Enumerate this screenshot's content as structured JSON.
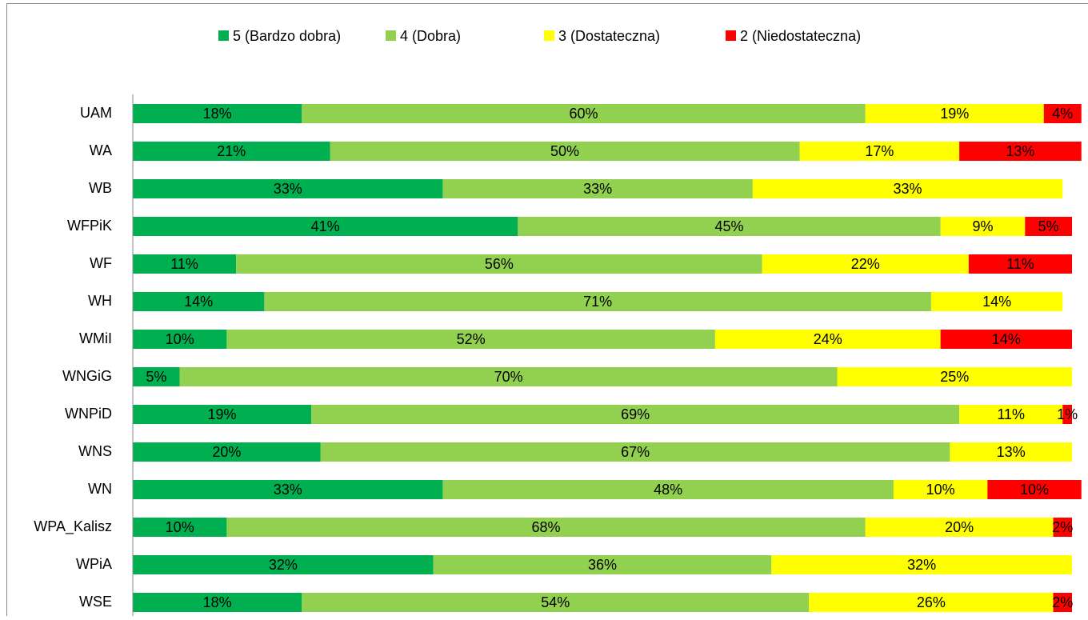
{
  "chart_data": {
    "type": "stacked-bar-horizontal",
    "categories": [
      "UAM",
      "WA",
      "WB",
      "WFPiK",
      "WF",
      "WH",
      "WMiI",
      "WNGiG",
      "WNPiD",
      "WNS",
      "WN",
      "WPA_Kalisz",
      "WPiA",
      "WSE"
    ],
    "xlim": [
      0,
      100
    ],
    "legend": "top",
    "series": [
      {
        "name": "5 (Bardzo dobra)",
        "color": "#00b050",
        "values": [
          18,
          21,
          33,
          41,
          11,
          14,
          10,
          5,
          19,
          20,
          33,
          10,
          32,
          18
        ],
        "value_labels": [
          "18%",
          "21%",
          "33%",
          "41%",
          "11%",
          "14%",
          "10%",
          "5%",
          "19%",
          "20%",
          "33%",
          "10%",
          "32%",
          "18%"
        ]
      },
      {
        "name": "4 (Dobra)",
        "color": "#92d050",
        "values": [
          60,
          50,
          33,
          45,
          56,
          71,
          52,
          70,
          69,
          67,
          48,
          68,
          36,
          54
        ],
        "value_labels": [
          "60%",
          "50%",
          "33%",
          "45%",
          "56%",
          "71%",
          "52%",
          "70%",
          "69%",
          "67%",
          "48%",
          "68%",
          "36%",
          "54%"
        ]
      },
      {
        "name": "3 (Dostateczna)",
        "color": "#ffff00",
        "values": [
          19,
          17,
          33,
          9,
          22,
          14,
          24,
          25,
          11,
          13,
          10,
          20,
          32,
          26
        ],
        "value_labels": [
          "19%",
          "17%",
          "33%",
          "9%",
          "22%",
          "14%",
          "24%",
          "25%",
          "11%",
          "13%",
          "10%",
          "20%",
          "32%",
          "26%"
        ]
      },
      {
        "name": "2 (Niedostateczna)",
        "color": "#ff0000",
        "values": [
          4,
          13,
          null,
          5,
          11,
          null,
          14,
          null,
          1,
          null,
          10,
          2,
          null,
          2
        ],
        "value_labels": [
          "4%",
          "13%",
          null,
          "5%",
          "11%",
          null,
          "14%",
          null,
          "1%",
          null,
          "10%",
          "2%",
          null,
          "2%"
        ]
      }
    ]
  }
}
